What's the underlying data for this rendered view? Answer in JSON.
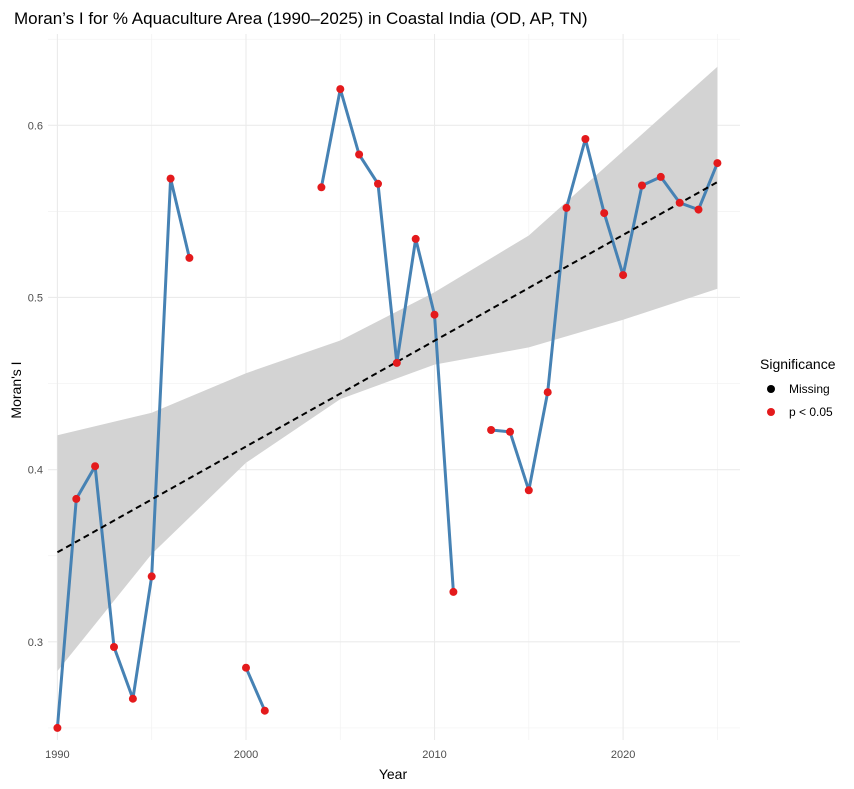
{
  "chart_data": {
    "type": "line",
    "title": "Moran’s I for % Aquaculture Area (1990–2025) in Coastal India (OD, AP, TN)",
    "xlabel": "Year",
    "ylabel": "Moran's I",
    "xlim": [
      1989.5,
      2026.2
    ],
    "ylim": [
      0.243,
      0.653
    ],
    "x_ticks": [
      1990,
      2000,
      2010,
      2020
    ],
    "y_ticks": [
      0.3,
      0.4,
      0.5,
      0.6
    ],
    "grid": true,
    "legend": {
      "title": "Significance",
      "placement": "right",
      "entries": [
        {
          "label": "Missing",
          "color": "#000000"
        },
        {
          "label": "p < 0.05",
          "color": "#e41a1c"
        }
      ]
    },
    "series": [
      {
        "type": "line",
        "color": "#4682b4",
        "segments": [
          [
            [
              1990,
              0.25
            ],
            [
              1991,
              0.383
            ],
            [
              1992,
              0.402
            ],
            [
              1993,
              0.297
            ],
            [
              1994,
              0.267
            ],
            [
              1995,
              0.338
            ],
            [
              1996,
              0.569
            ],
            [
              1997,
              0.523
            ]
          ],
          [
            [
              2000,
              0.285
            ],
            [
              2001,
              0.26
            ]
          ],
          [
            [
              2004,
              0.564
            ],
            [
              2005,
              0.621
            ],
            [
              2006,
              0.583
            ],
            [
              2007,
              0.566
            ],
            [
              2008,
              0.462
            ],
            [
              2009,
              0.534
            ],
            [
              2010,
              0.49
            ],
            [
              2011,
              0.329
            ]
          ],
          [
            [
              2013,
              0.423
            ],
            [
              2014,
              0.422
            ],
            [
              2015,
              0.388
            ],
            [
              2016,
              0.445
            ],
            [
              2017,
              0.552
            ],
            [
              2018,
              0.592
            ],
            [
              2019,
              0.549
            ],
            [
              2020,
              0.513
            ],
            [
              2021,
              0.565
            ],
            [
              2022,
              0.57
            ],
            [
              2023,
              0.555
            ],
            [
              2024,
              0.551
            ],
            [
              2025,
              0.578
            ]
          ]
        ]
      },
      {
        "type": "scatter",
        "significance": "p < 0.05",
        "color": "#e41a1c",
        "points": [
          [
            1990,
            0.25
          ],
          [
            1991,
            0.383
          ],
          [
            1992,
            0.402
          ],
          [
            1993,
            0.297
          ],
          [
            1994,
            0.267
          ],
          [
            1995,
            0.338
          ],
          [
            1996,
            0.569
          ],
          [
            1997,
            0.523
          ],
          [
            2000,
            0.285
          ],
          [
            2001,
            0.26
          ],
          [
            2004,
            0.564
          ],
          [
            2005,
            0.621
          ],
          [
            2006,
            0.583
          ],
          [
            2007,
            0.566
          ],
          [
            2008,
            0.462
          ],
          [
            2009,
            0.534
          ],
          [
            2010,
            0.49
          ],
          [
            2011,
            0.329
          ],
          [
            2013,
            0.423
          ],
          [
            2014,
            0.422
          ],
          [
            2015,
            0.388
          ],
          [
            2016,
            0.445
          ],
          [
            2017,
            0.552
          ],
          [
            2018,
            0.592
          ],
          [
            2019,
            0.549
          ],
          [
            2020,
            0.513
          ],
          [
            2021,
            0.565
          ],
          [
            2022,
            0.57
          ],
          [
            2023,
            0.555
          ],
          [
            2024,
            0.551
          ],
          [
            2025,
            0.578
          ]
        ]
      },
      {
        "type": "trend",
        "style": "dashed",
        "color": "#000000",
        "line": [
          [
            1990,
            0.352
          ],
          [
            2025,
            0.567
          ]
        ],
        "confidence_band": {
          "color": "#d3d3d3",
          "x": [
            1990,
            1995,
            2000,
            2005,
            2010,
            2015,
            2020,
            2025
          ],
          "lower": [
            0.283,
            0.351,
            0.404,
            0.441,
            0.461,
            0.471,
            0.487,
            0.505
          ],
          "upper": [
            0.42,
            0.433,
            0.456,
            0.475,
            0.503,
            0.536,
            0.585,
            0.634
          ]
        }
      }
    ]
  }
}
